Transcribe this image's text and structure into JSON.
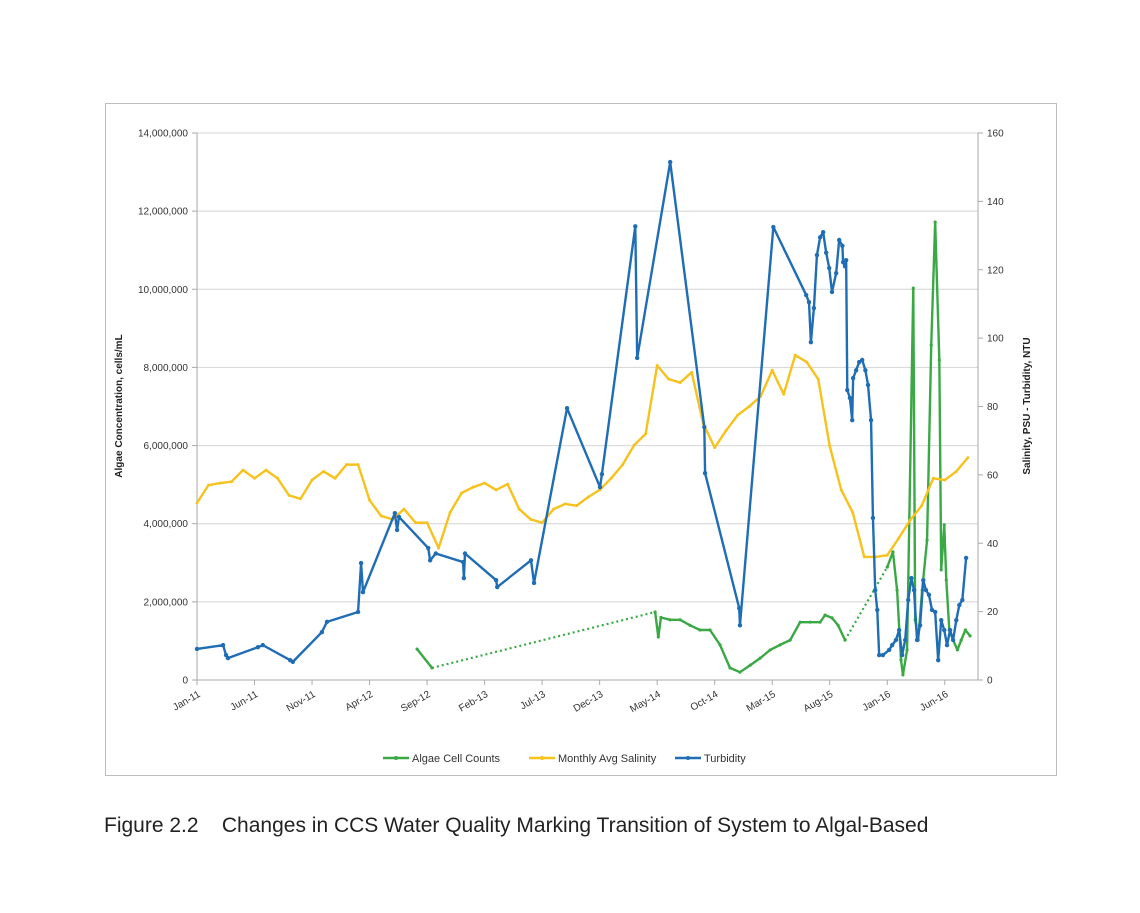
{
  "chart_data": {
    "type": "line",
    "title": "",
    "caption": "Figure 2.2    Changes in CCS Water Quality Marking Transition of System to Algal-Based",
    "ylabel_left": "Algae Concentration, cells/mL",
    "ylabel_right": "Salinity, PSU - Turbidity, NTU",
    "ylim_left": [
      0,
      14000000
    ],
    "ylim_right": [
      0,
      160
    ],
    "xlim": [
      "2011-01-01",
      "2016-08-28"
    ],
    "yticks_left": [
      "0",
      "2,000,000",
      "4,000,000",
      "6,000,000",
      "8,000,000",
      "10,000,000",
      "12,000,000",
      "14,000,000"
    ],
    "yticks_right": [
      "0",
      "20",
      "40",
      "60",
      "80",
      "100",
      "120",
      "140",
      "160"
    ],
    "xticks": [
      "Jan-11",
      "Jun-11",
      "Nov-11",
      "Apr-12",
      "Sep-12",
      "Feb-13",
      "Jul-13",
      "Dec-13",
      "May-14",
      "Oct-14",
      "Mar-15",
      "Aug-15",
      "Jan-16",
      "Jun-16"
    ],
    "grid": "horizontal",
    "legend_placement": "bottom",
    "series": [
      {
        "name": "Algae Cell Counts",
        "axis": "left",
        "color": "#3aa845",
        "gap_style": "dotted",
        "segments": [
          [
            [
              "2012-08-05",
              790000
            ],
            [
              "2012-09-14",
              310000
            ]
          ],
          [
            [
              "2014-04-26",
              1740000
            ],
            [
              "2014-05-04",
              1100000
            ],
            [
              "2014-05-11",
              1600000
            ],
            [
              "2014-06-05",
              1540000
            ],
            [
              "2014-07-01",
              1540000
            ],
            [
              "2014-07-27",
              1400000
            ],
            [
              "2014-08-23",
              1280000
            ],
            [
              "2014-09-19",
              1280000
            ],
            [
              "2014-10-15",
              900000
            ],
            [
              "2014-11-11",
              310000
            ],
            [
              "2014-12-07",
              200000
            ],
            [
              "2015-01-04",
              380000
            ],
            [
              "2015-01-30",
              560000
            ],
            [
              "2015-02-26",
              770000
            ],
            [
              "2015-03-22",
              900000
            ],
            [
              "2015-04-18",
              1020000
            ],
            [
              "2015-05-14",
              1480000
            ],
            [
              "2015-06-10",
              1480000
            ],
            [
              "2015-07-06",
              1480000
            ],
            [
              "2015-07-19",
              1660000
            ],
            [
              "2015-08-07",
              1590000
            ],
            [
              "2015-08-23",
              1400000
            ],
            [
              "2015-09-11",
              1020000
            ]
          ],
          [
            [
              "2016-01-01",
              2890000
            ],
            [
              "2016-01-16",
              3280000
            ],
            [
              "2016-01-27",
              2300000
            ],
            [
              "2016-02-07",
              510000
            ],
            [
              "2016-02-12",
              130000
            ],
            [
              "2016-02-23",
              770000
            ],
            [
              "2016-03-09",
              10030000
            ],
            [
              "2016-03-14",
              1540000
            ],
            [
              "2016-03-22",
              1020000
            ],
            [
              "2016-04-02",
              2300000
            ],
            [
              "2016-04-15",
              3580000
            ],
            [
              "2016-04-26",
              8570000
            ],
            [
              "2016-05-06",
              11720000
            ],
            [
              "2016-05-17",
              8190000
            ],
            [
              "2016-05-22",
              2820000
            ],
            [
              "2016-05-30",
              3970000
            ],
            [
              "2016-06-05",
              2560000
            ],
            [
              "2016-06-13",
              1280000
            ],
            [
              "2016-06-23",
              1020000
            ],
            [
              "2016-07-04",
              770000
            ],
            [
              "2016-07-14",
              1020000
            ],
            [
              "2016-07-25",
              1280000
            ],
            [
              "2016-08-07",
              1130000
            ]
          ]
        ]
      },
      {
        "name": "Monthly Avg Salinity",
        "axis": "right",
        "color": "#f6c21e",
        "start_month": "2011-01",
        "values": [
          51.8,
          57,
          57.6,
          58,
          61.4,
          59,
          61.4,
          59,
          54,
          53,
          58.5,
          61,
          59,
          63,
          63,
          52.6,
          48,
          47,
          50,
          46,
          46,
          38.6,
          49,
          54.7,
          56.4,
          57.6,
          55.6,
          57.3,
          50,
          47,
          46,
          50,
          51.5,
          51,
          53.5,
          55.6,
          59,
          63,
          68.7,
          72,
          92,
          88,
          87,
          90,
          75,
          68,
          73,
          77.5,
          80,
          83,
          90.6,
          83.6,
          95,
          93,
          88,
          68.4,
          55.6,
          49,
          36,
          36,
          36.5,
          41.5,
          46.8,
          51,
          59,
          58.5,
          61,
          65
        ]
      },
      {
        "name": "Turbidity",
        "axis": "right",
        "color": "#1f6db5",
        "points": [
          [
            "2011-01-01",
            9.1
          ],
          [
            "2011-03-09",
            10.2
          ],
          [
            "2011-03-17",
            7.3
          ],
          [
            "2011-03-22",
            6.4
          ],
          [
            "2011-06-10",
            9.6
          ],
          [
            "2011-06-23",
            10.2
          ],
          [
            "2011-09-04",
            5.8
          ],
          [
            "2011-09-11",
            5.3
          ],
          [
            "2011-11-27",
            14
          ],
          [
            "2011-12-10",
            17
          ],
          [
            "2012-03-01",
            19.9
          ],
          [
            "2012-03-09",
            34.2
          ],
          [
            "2012-03-14",
            25.7
          ],
          [
            "2012-06-07",
            48.8
          ],
          [
            "2012-06-13",
            43.9
          ],
          [
            "2012-06-18",
            47.7
          ],
          [
            "2012-09-04",
            38.6
          ],
          [
            "2012-09-09",
            35
          ],
          [
            "2012-09-24",
            37
          ],
          [
            "2012-12-05",
            34.5
          ],
          [
            "2012-12-07",
            29.8
          ],
          [
            "2012-12-10",
            37
          ],
          [
            "2013-03-01",
            29.2
          ],
          [
            "2013-03-04",
            27.2
          ],
          [
            "2013-06-02",
            35
          ],
          [
            "2013-06-10",
            28.4
          ],
          [
            "2013-09-06",
            79.5
          ],
          [
            "2013-12-02",
            56.4
          ],
          [
            "2013-12-07",
            60.2
          ],
          [
            "2014-03-04",
            132.7
          ],
          [
            "2014-03-09",
            94.2
          ],
          [
            "2014-06-05",
            151.5
          ],
          [
            "2014-09-04",
            74
          ],
          [
            "2014-09-06",
            60.5
          ],
          [
            "2014-12-05",
            21
          ],
          [
            "2014-12-07",
            16
          ],
          [
            "2015-03-04",
            132.5
          ],
          [
            "2015-05-30",
            112.6
          ],
          [
            "2015-06-07",
            110.5
          ],
          [
            "2015-06-12",
            98.8
          ],
          [
            "2015-06-20",
            108.8
          ],
          [
            "2015-06-28",
            124.3
          ],
          [
            "2015-07-06",
            129.5
          ],
          [
            "2015-07-14",
            131
          ],
          [
            "2015-07-22",
            125
          ],
          [
            "2015-07-30",
            120.5
          ],
          [
            "2015-08-07",
            113.5
          ],
          [
            "2015-08-18",
            119
          ],
          [
            "2015-08-26",
            128.7
          ],
          [
            "2015-09-04",
            127
          ],
          [
            "2015-09-06",
            122.2
          ],
          [
            "2015-09-11",
            121
          ],
          [
            "2015-09-14",
            122.8
          ],
          [
            "2015-09-17",
            84.8
          ],
          [
            "2015-09-24",
            82.5
          ],
          [
            "2015-09-30",
            76
          ],
          [
            "2015-10-02",
            88.3
          ],
          [
            "2015-10-10",
            90.6
          ],
          [
            "2015-10-18",
            93
          ],
          [
            "2015-10-26",
            93.6
          ],
          [
            "2015-11-04",
            90.6
          ],
          [
            "2015-11-11",
            86.3
          ],
          [
            "2015-11-19",
            76
          ],
          [
            "2015-11-24",
            47.4
          ],
          [
            "2015-11-30",
            26.3
          ],
          [
            "2015-12-05",
            20.5
          ],
          [
            "2015-12-10",
            7.3
          ],
          [
            "2015-12-20",
            7.3
          ],
          [
            "2016-01-06",
            8.8
          ],
          [
            "2016-01-14",
            10.2
          ],
          [
            "2016-01-24",
            11.7
          ],
          [
            "2016-02-02",
            14.6
          ],
          [
            "2016-02-10",
            7.3
          ],
          [
            "2016-02-18",
            11.7
          ],
          [
            "2016-02-26",
            23.4
          ],
          [
            "2016-03-04",
            29.8
          ],
          [
            "2016-03-11",
            26.3
          ],
          [
            "2016-03-19",
            11.7
          ],
          [
            "2016-03-27",
            16
          ],
          [
            "2016-04-05",
            29.2
          ],
          [
            "2016-04-12",
            26.3
          ],
          [
            "2016-04-20",
            24.9
          ],
          [
            "2016-04-28",
            20.5
          ],
          [
            "2016-05-06",
            19.9
          ],
          [
            "2016-05-14",
            5.8
          ],
          [
            "2016-05-22",
            17.5
          ],
          [
            "2016-05-30",
            14.6
          ],
          [
            "2016-06-07",
            10.2
          ],
          [
            "2016-06-15",
            14.6
          ],
          [
            "2016-06-23",
            11.7
          ],
          [
            "2016-07-01",
            17.5
          ],
          [
            "2016-07-09",
            21.9
          ],
          [
            "2016-07-17",
            23.4
          ],
          [
            "2016-07-27",
            35.7
          ]
        ]
      }
    ]
  }
}
